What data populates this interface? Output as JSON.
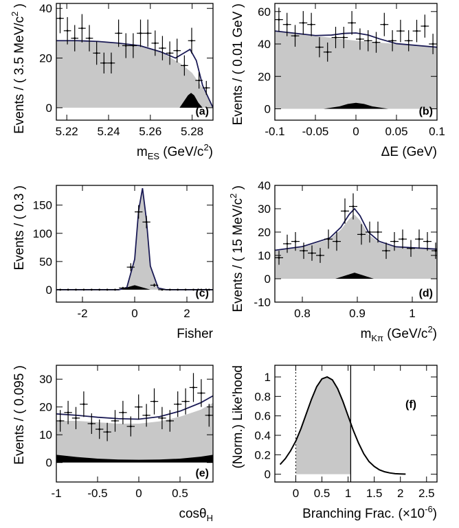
{
  "colors": {
    "signal_fill": "#000000",
    "background_fill": "#c8c8c8",
    "total_curve": "#1a1a55",
    "points": "#000000",
    "frame": "#000000"
  },
  "chart_data": [
    {
      "type": "area",
      "panel_tag": "(a)",
      "xlabel_main": "m",
      "xlabel_sub": "ES",
      "xlabel_unit": " (GeV/c",
      "xlabel_sup": "2",
      "xlabel_end": ")",
      "ylabel": "Events / ( 3.5 MeV/c",
      "ylabel_sup": "2",
      "ylabel_end": " )",
      "xlim": [
        5.215,
        5.29
      ],
      "ylim": [
        -5,
        42
      ],
      "xticks": [
        5.22,
        5.24,
        5.26,
        5.28
      ],
      "xticklabels": [
        "5.22",
        "5.24",
        "5.26",
        "5.28"
      ],
      "yticks": [
        0,
        20,
        40
      ],
      "yticklabels": [
        "0",
        "20",
        "40"
      ],
      "points": {
        "x": [
          5.2168,
          5.2203,
          5.2238,
          5.2273,
          5.2308,
          5.2343,
          5.2378,
          5.2413,
          5.2448,
          5.2483,
          5.2518,
          5.2553,
          5.2588,
          5.2623,
          5.2658,
          5.2693,
          5.2728,
          5.2763,
          5.2798,
          5.2833,
          5.2868
        ],
        "y": [
          36,
          31,
          28,
          32,
          28,
          22,
          18,
          18,
          30,
          25,
          25,
          30,
          30,
          26,
          24,
          22,
          23,
          17,
          27,
          11,
          8
        ],
        "err": [
          6,
          5.5,
          5.3,
          5.7,
          5.3,
          4.7,
          4.2,
          4.2,
          5.5,
          5,
          5,
          5.5,
          5.5,
          5.1,
          4.9,
          4.7,
          4.8,
          4.1,
          5.2,
          3.3,
          2.8
        ]
      },
      "background_curve": {
        "x": [
          5.215,
          5.225,
          5.235,
          5.245,
          5.255,
          5.265,
          5.275,
          5.28,
          5.285,
          5.29
        ],
        "y": [
          27,
          27,
          26.7,
          26,
          25,
          22.5,
          17.5,
          14,
          8,
          0
        ]
      },
      "total_curve": {
        "x": [
          5.215,
          5.225,
          5.235,
          5.245,
          5.255,
          5.265,
          5.272,
          5.276,
          5.279,
          5.282,
          5.285,
          5.29
        ],
        "y": [
          27,
          27,
          26.7,
          26,
          25,
          22.5,
          20,
          22,
          23.5,
          19,
          9,
          0
        ]
      },
      "signal": {
        "x": [
          5.274,
          5.276,
          5.278,
          5.2795,
          5.281,
          5.283,
          5.285
        ],
        "y": [
          0,
          2.5,
          5,
          6,
          5,
          2,
          0
        ]
      }
    },
    {
      "type": "area",
      "panel_tag": "(b)",
      "xlabel_main": "ΔE (GeV)",
      "ylabel": "Events / ( 0.01 GeV )",
      "xlim": [
        -0.1,
        0.1
      ],
      "ylim": [
        -7,
        65
      ],
      "xticks": [
        -0.1,
        -0.05,
        0,
        0.05,
        0.1
      ],
      "xticklabels": [
        "-0.1",
        "-0.05",
        "0",
        "0.05",
        "0.1"
      ],
      "yticks": [
        0,
        20,
        40,
        60
      ],
      "yticklabels": [
        "0",
        "20",
        "40",
        "60"
      ],
      "points": {
        "x": [
          -0.095,
          -0.085,
          -0.075,
          -0.065,
          -0.055,
          -0.045,
          -0.035,
          -0.025,
          -0.015,
          -0.005,
          0.005,
          0.015,
          0.025,
          0.035,
          0.045,
          0.055,
          0.065,
          0.075,
          0.085,
          0.095
        ],
        "y": [
          55,
          52,
          45,
          53,
          52,
          38,
          35,
          44,
          44,
          53,
          43,
          42,
          41,
          52,
          42,
          48,
          42,
          48,
          51,
          40
        ],
        "err": [
          7.4,
          7.2,
          6.7,
          7.3,
          7.2,
          6.2,
          5.9,
          6.6,
          6.6,
          7.3,
          6.6,
          6.5,
          6.4,
          7.2,
          6.5,
          6.9,
          6.5,
          6.9,
          7.1,
          6.3
        ]
      },
      "background_curve": {
        "x": [
          -0.1,
          -0.05,
          0,
          0.05,
          0.1
        ],
        "y": [
          48,
          45,
          42,
          40,
          38
        ]
      },
      "total_curve": {
        "x": [
          -0.1,
          -0.05,
          -0.03,
          -0.015,
          0,
          0.015,
          0.03,
          0.05,
          0.1
        ],
        "y": [
          48,
          45.2,
          45.5,
          46.5,
          46.8,
          45.5,
          43,
          40.2,
          38
        ]
      },
      "signal": {
        "x": [
          -0.04,
          -0.02,
          -0.01,
          0,
          0.01,
          0.02,
          0.04
        ],
        "y": [
          0,
          1.5,
          3,
          3.7,
          3,
          1.5,
          0
        ]
      }
    },
    {
      "type": "area",
      "panel_tag": "(c)",
      "xlabel_main": "Fisher",
      "ylabel": "Events / ( 0.3 )",
      "xlim": [
        -3,
        3
      ],
      "ylim": [
        -22,
        185
      ],
      "xticks": [
        -2,
        0,
        2
      ],
      "xticklabels": [
        "-2",
        "0",
        "2"
      ],
      "yticks": [
        0,
        50,
        100,
        150
      ],
      "yticklabels": [
        "0",
        "50",
        "100",
        "150"
      ],
      "points": {
        "x": [
          -2.85,
          -2.55,
          -2.25,
          -1.95,
          -1.65,
          -1.35,
          -1.05,
          -0.75,
          -0.45,
          -0.15,
          0.15,
          0.45,
          0.75,
          1.05,
          1.35,
          1.65,
          1.95,
          2.25,
          2.55,
          2.85
        ],
        "y": [
          0,
          0,
          0,
          0,
          0,
          0,
          0,
          0,
          3,
          40,
          138,
          120,
          8,
          0,
          0,
          0,
          0,
          0,
          0,
          0
        ],
        "err": [
          0,
          0,
          0,
          0,
          0,
          0,
          0,
          0,
          2,
          7,
          12,
          11,
          3,
          0,
          0,
          0,
          0,
          0,
          0,
          0
        ]
      },
      "background_curve": {
        "x": [
          -3,
          -0.6,
          -0.3,
          0,
          0.15,
          0.3,
          0.45,
          0.6,
          0.9,
          1.2,
          3
        ],
        "y": [
          0,
          0,
          3,
          50,
          135,
          175,
          120,
          40,
          3,
          0,
          0
        ]
      },
      "total_curve": {
        "x": [
          -3,
          -0.6,
          -0.3,
          0,
          0.15,
          0.3,
          0.45,
          0.6,
          0.9,
          1.2,
          3
        ],
        "y": [
          0,
          0,
          4,
          54,
          140,
          180,
          124,
          42,
          3,
          0,
          0
        ]
      },
      "signal": {
        "x": [
          -0.6,
          -0.3,
          0,
          0.3,
          0.6
        ],
        "y": [
          0,
          4,
          8,
          4,
          0
        ]
      }
    },
    {
      "type": "area",
      "panel_tag": "(d)",
      "xlabel_main": "m",
      "xlabel_sub": "Kπ",
      "xlabel_unit": " (GeV/c",
      "xlabel_sup": "2",
      "xlabel_end": ")",
      "ylabel": "Events / ( 15 MeV/c",
      "ylabel_sup": "2",
      "ylabel_end": " )",
      "xlim": [
        0.75,
        1.045
      ],
      "ylim": [
        -10,
        40
      ],
      "xticks": [
        0.8,
        0.9,
        1
      ],
      "xticklabels": [
        "0.8",
        "0.9",
        "1"
      ],
      "yticks": [
        -10,
        0,
        10,
        20,
        30,
        40
      ],
      "yticklabels": [
        "-10",
        "0",
        "10",
        "20",
        "30",
        "40"
      ],
      "points": {
        "x": [
          0.7575,
          0.7725,
          0.7875,
          0.8025,
          0.8175,
          0.8325,
          0.8475,
          0.8625,
          0.8775,
          0.8925,
          0.9075,
          0.9225,
          0.9375,
          0.9525,
          0.9675,
          0.9825,
          0.9975,
          1.0125,
          1.0275,
          1.0425
        ],
        "y": [
          9,
          15,
          16,
          12,
          11,
          10,
          17,
          16,
          29,
          31,
          19,
          20,
          20,
          12,
          16,
          17,
          13,
          17,
          16,
          12
        ],
        "err": [
          3,
          3.9,
          4,
          3.5,
          3.3,
          3.2,
          4.1,
          4,
          5.4,
          5.6,
          4.4,
          4.5,
          4.5,
          3.5,
          4,
          4.1,
          3.6,
          4.1,
          4,
          3.5
        ]
      },
      "background_curve": {
        "x": [
          0.75,
          0.8,
          0.85,
          0.87,
          0.885,
          0.895,
          0.905,
          0.92,
          0.94,
          0.97,
          1.045
        ],
        "y": [
          12,
          13.5,
          17,
          21,
          25.5,
          27.5,
          25,
          19,
          15.5,
          13.5,
          12.5
        ]
      },
      "total_curve": {
        "x": [
          0.75,
          0.8,
          0.85,
          0.87,
          0.885,
          0.895,
          0.905,
          0.92,
          0.94,
          0.97,
          1.045
        ],
        "y": [
          12.2,
          13.8,
          17.5,
          22,
          27.5,
          30,
          27,
          20,
          16,
          13.7,
          12.7
        ]
      },
      "signal": {
        "x": [
          0.86,
          0.88,
          0.895,
          0.91,
          0.93
        ],
        "y": [
          0,
          1.5,
          2.6,
          1.5,
          0
        ]
      }
    },
    {
      "type": "area",
      "panel_tag": "(e)",
      "xlabel_main": "cosθ",
      "xlabel_sub": "H",
      "ylabel": "Events / ( 0.095 )",
      "xlim": [
        -1,
        0.9
      ],
      "ylim": [
        -7,
        35
      ],
      "xticks": [
        -1,
        -0.5,
        0,
        0.5
      ],
      "xticklabels": [
        "-1",
        "-0.5",
        "0",
        "0.5"
      ],
      "yticks": [
        0,
        10,
        20,
        30
      ],
      "yticklabels": [
        "0",
        "10",
        "20",
        "30"
      ],
      "points": {
        "x": [
          -0.9525,
          -0.8575,
          -0.7625,
          -0.6675,
          -0.5725,
          -0.4775,
          -0.3825,
          -0.2875,
          -0.1925,
          -0.0975,
          -0.0025,
          0.0925,
          0.1875,
          0.2825,
          0.3775,
          0.4725,
          0.5675,
          0.6625,
          0.7575,
          0.8525
        ],
        "y": [
          15,
          18,
          16,
          21,
          14,
          12,
          11,
          15,
          18,
          13,
          20,
          17,
          22,
          16,
          15,
          21,
          22,
          27,
          25,
          17
        ],
        "err": [
          3.9,
          4.2,
          4,
          4.6,
          3.7,
          3.5,
          3.3,
          3.9,
          4.2,
          3.6,
          4.5,
          4.1,
          4.7,
          4,
          3.9,
          4.6,
          4.7,
          5.2,
          5,
          4.1
        ]
      },
      "background_curve": {
        "x": [
          -1,
          -0.75,
          -0.5,
          -0.25,
          0,
          0.25,
          0.5,
          0.75,
          0.9
        ],
        "y": [
          15,
          15,
          14.5,
          14,
          14,
          14.8,
          16.5,
          19,
          21.5
        ]
      },
      "total_curve": {
        "x": [
          -1,
          -0.75,
          -0.5,
          -0.25,
          0,
          0.25,
          0.5,
          0.75,
          0.9
        ],
        "y": [
          17.5,
          17,
          16.3,
          15.8,
          15.6,
          16.5,
          18.5,
          21.5,
          24
        ]
      },
      "signal": {
        "x": [
          -1,
          -0.75,
          -0.5,
          -0.25,
          0,
          0.25,
          0.5,
          0.75,
          0.9
        ],
        "y": [
          2.8,
          2,
          1.4,
          1.1,
          1,
          1.1,
          1.4,
          2.1,
          2.8
        ]
      }
    },
    {
      "type": "line",
      "panel_tag": "(f)",
      "xlabel_main": "Branching Frac. (×10",
      "xlabel_sup": "-6",
      "xlabel_end": ")",
      "ylabel": "(Norm.) Like'hood",
      "xlim": [
        -0.4,
        2.7
      ],
      "ylim": [
        -0.08,
        1.12
      ],
      "xticks": [
        0,
        0.5,
        1,
        1.5,
        2,
        2.5
      ],
      "xticklabels": [
        "0",
        "0.5",
        "1",
        "1.5",
        "2",
        "2.5"
      ],
      "yticks": [
        0,
        0.2,
        0.4,
        0.6,
        0.8,
        1
      ],
      "yticklabels": [
        "0",
        "0.2",
        "0.4",
        "0.6",
        "0.8",
        "1"
      ],
      "likelihood_curve": {
        "x": [
          -0.3,
          -0.2,
          -0.1,
          0,
          0.1,
          0.2,
          0.3,
          0.4,
          0.5,
          0.6,
          0.7,
          0.8,
          0.9,
          1,
          1.1,
          1.2,
          1.3,
          1.4,
          1.5,
          1.6,
          1.7,
          1.8,
          1.9,
          2,
          2.1
        ],
        "y": [
          0.1,
          0.16,
          0.24,
          0.34,
          0.47,
          0.62,
          0.77,
          0.9,
          0.98,
          1,
          0.97,
          0.88,
          0.75,
          0.6,
          0.45,
          0.32,
          0.21,
          0.13,
          0.08,
          0.045,
          0.025,
          0.013,
          0.006,
          0.003,
          0.001
        ]
      },
      "shaded_interval": [
        0,
        1.05
      ],
      "lines": {
        "dotted_x": 0,
        "solid_x": 1.05
      }
    }
  ]
}
